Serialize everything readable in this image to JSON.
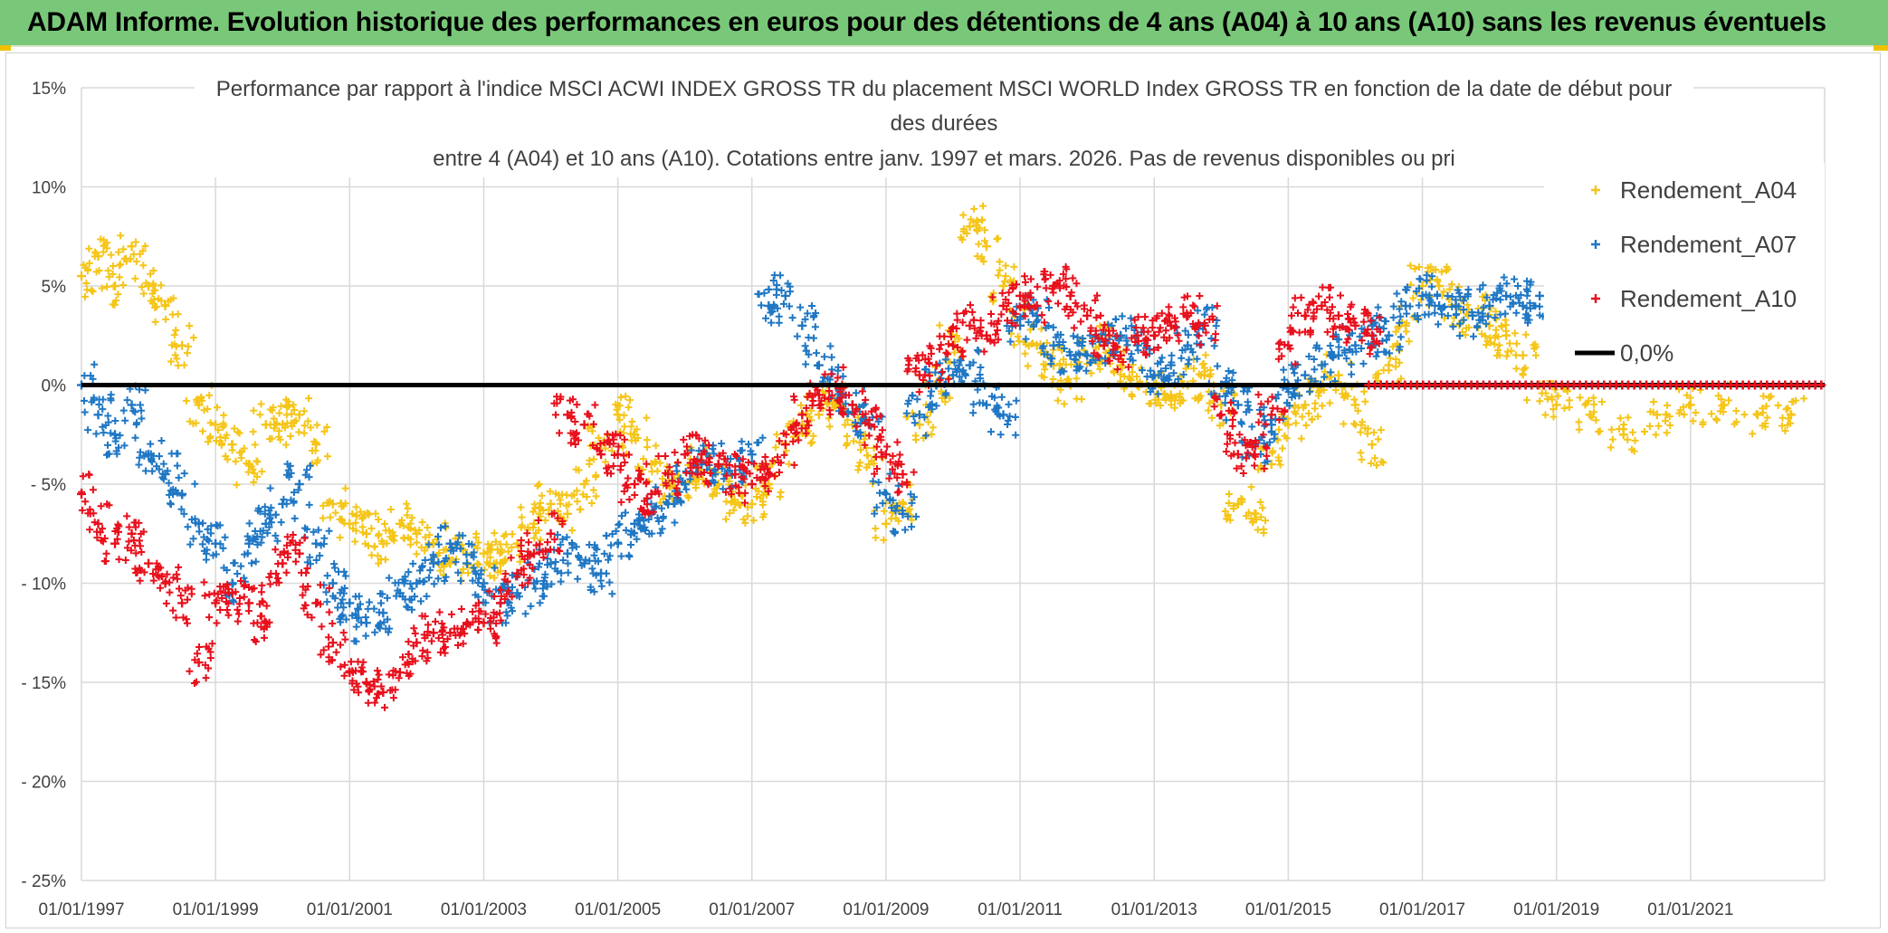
{
  "header": {
    "title": "ADAM Informe. Evolution historique des performances en euros pour des détentions de 4 ans (A04) à 10 ans (A10) sans les revenus éventuels"
  },
  "colors": {
    "banner": "#79c879",
    "A04": "#f5c518",
    "A07": "#1f77c4",
    "A10": "#e8101c",
    "zero_line": "#000000",
    "grid": "#d9d9d9",
    "accent": "#f0c000"
  },
  "chart_data": {
    "type": "scatter",
    "title_lines": [
      "Performance  par rapport à l'indice MSCI ACWI INDEX GROSS TR  du placement MSCI WORLD Index GROSS TR en fonction de la date de début pour",
      "des durées",
      "entre 4 (A04) et 10 ans (A10). Cotations entre janv. 1997 et mars. 2026. Pas de revenus disponibles ou pri"
    ],
    "x_tick_labels": [
      "01/01/1997",
      "01/01/1999",
      "01/01/2001",
      "01/01/2003",
      "01/01/2005",
      "01/01/2007",
      "01/01/2009",
      "01/01/2011",
      "01/01/2013",
      "01/01/2015",
      "01/01/2017",
      "01/01/2019",
      "01/01/2021"
    ],
    "xlim": [
      1997.0,
      2023.0
    ],
    "y_tick_labels": [
      "15%",
      "10%",
      "5%",
      "0%",
      "- 5%",
      "- 10%",
      "- 15%",
      "- 20%",
      "- 25%"
    ],
    "y_tick_values": [
      15,
      10,
      5,
      0,
      -5,
      -10,
      -15,
      -20,
      -25
    ],
    "ylim": [
      -25,
      15
    ],
    "grid": true,
    "legend_position": "right",
    "legend": [
      "Rendement_A04",
      "Rendement_A07",
      "Rendement_A10",
      "0,0%"
    ],
    "series": [
      {
        "name": "Rendement_A04",
        "x": [
          1997.0,
          1997.25,
          1997.5,
          1997.75,
          1998.0,
          1998.25,
          1998.5,
          1998.75,
          1999.0,
          1999.25,
          1999.5,
          1999.75,
          2000.0,
          2000.25,
          2000.5,
          2000.75,
          2001.0,
          2001.25,
          2001.5,
          2001.75,
          2002.0,
          2002.25,
          2002.5,
          2002.75,
          2003.0,
          2003.25,
          2003.5,
          2003.75,
          2004.0,
          2004.25,
          2004.5,
          2004.75,
          2005.0,
          2005.25,
          2005.5,
          2005.75,
          2006.0,
          2006.25,
          2006.5,
          2006.75,
          2007.0,
          2007.25,
          2007.5,
          2007.75,
          2008.0,
          2008.25,
          2008.5,
          2008.75,
          2009.0,
          2009.25,
          2009.5,
          2009.75,
          2010.0,
          2010.25,
          2010.5,
          2010.75,
          2011.0,
          2011.25,
          2011.5,
          2011.75,
          2012.0,
          2012.25,
          2012.5,
          2012.75,
          2013.0,
          2013.25,
          2013.5,
          2013.75,
          2014.0,
          2014.25,
          2014.5,
          2014.75,
          2015.0,
          2015.25,
          2015.5,
          2015.75,
          2016.0,
          2016.25,
          2016.5,
          2016.75,
          2017.0,
          2017.25,
          2017.5,
          2017.75,
          2018.0,
          2018.25,
          2018.5,
          2018.75,
          2019.0,
          2019.5,
          2020.0,
          2020.5,
          2021.0,
          2021.5,
          2022.0,
          2022.5
        ],
        "values": [
          5.5,
          6.5,
          5.0,
          7.0,
          5.0,
          4.0,
          2.0,
          -1.0,
          -2.0,
          -3.0,
          -4.0,
          -2.0,
          -2.0,
          -1.5,
          -3.0,
          -6.0,
          -7.0,
          -7.5,
          -8.0,
          -7.0,
          -7.5,
          -8.0,
          -9.0,
          -8.5,
          -8.5,
          -9.0,
          -8.0,
          -7.0,
          -6.0,
          -6.5,
          -5.0,
          -3.0,
          -1.5,
          -2.5,
          -4.0,
          -5.0,
          -5.0,
          -4.0,
          -5.0,
          -6.0,
          -6.0,
          -5.0,
          -3.0,
          -2.0,
          -1.5,
          -1.0,
          -2.0,
          -4.0,
          -7.0,
          -6.0,
          -2.0,
          0.0,
          2.0,
          8.0,
          7.0,
          5.0,
          3.0,
          2.0,
          1.0,
          0.0,
          1.5,
          2.0,
          1.0,
          0.0,
          0.0,
          -0.5,
          0.0,
          0.5,
          -1.0,
          -6.0,
          -6.5,
          -4.0,
          -2.0,
          -1.0,
          0.0,
          0.5,
          -1.0,
          -3.0,
          1.0,
          3.0,
          5.0,
          5.0,
          4.0,
          3.5,
          3.0,
          2.5,
          1.5,
          0.0,
          -1.0,
          -1.5,
          -2.5,
          -1.5,
          -1.0,
          -1.0,
          -1.5,
          -1.5
        ]
      },
      {
        "name": "Rendement_A07",
        "x": [
          1997.0,
          1997.25,
          1997.5,
          1997.75,
          1998.0,
          1998.25,
          1998.5,
          1998.75,
          1999.0,
          1999.25,
          1999.5,
          1999.75,
          2000.0,
          2000.25,
          2000.5,
          2000.75,
          2001.0,
          2001.25,
          2001.5,
          2001.75,
          2002.0,
          2002.25,
          2002.5,
          2002.75,
          2003.0,
          2003.25,
          2003.5,
          2003.75,
          2004.0,
          2004.25,
          2004.5,
          2004.75,
          2005.0,
          2005.25,
          2005.5,
          2005.75,
          2006.0,
          2006.25,
          2006.5,
          2006.75,
          2007.0,
          2007.25,
          2007.5,
          2007.75,
          2008.0,
          2008.25,
          2008.5,
          2008.75,
          2009.0,
          2009.25,
          2009.5,
          2009.75,
          2010.0,
          2010.25,
          2010.5,
          2010.75,
          2011.0,
          2011.25,
          2011.5,
          2011.75,
          2012.0,
          2012.25,
          2012.5,
          2012.75,
          2013.0,
          2013.25,
          2013.5,
          2013.75,
          2014.0,
          2014.25,
          2014.5,
          2014.75,
          2015.0,
          2015.25,
          2015.5,
          2015.75,
          2016.0,
          2016.25,
          2016.5,
          2016.75,
          2017.0,
          2017.25,
          2017.5,
          2017.75,
          2018.0,
          2018.25,
          2018.5,
          2018.75
        ],
        "values": [
          0.0,
          -1.5,
          -2.5,
          -1.0,
          -3.5,
          -4.5,
          -5.5,
          -7.0,
          -8.0,
          -10.0,
          -8.0,
          -7.0,
          -6.0,
          -5.0,
          -8.0,
          -10.0,
          -11.0,
          -12.0,
          -11.5,
          -10.5,
          -10.0,
          -9.0,
          -8.0,
          -9.0,
          -10.0,
          -11.0,
          -10.5,
          -10.0,
          -9.0,
          -8.5,
          -9.0,
          -9.5,
          -8.0,
          -7.0,
          -6.5,
          -6.0,
          -5.0,
          -4.0,
          -4.0,
          -4.5,
          -3.5,
          4.0,
          4.5,
          3.0,
          1.0,
          0.0,
          -1.0,
          -2.0,
          -5.5,
          -6.5,
          -1.5,
          0.0,
          0.5,
          1.0,
          -1.0,
          -1.5,
          3.0,
          3.5,
          2.0,
          1.5,
          1.5,
          2.0,
          2.5,
          2.0,
          0.5,
          1.0,
          2.0,
          3.0,
          0.0,
          -1.0,
          -3.0,
          -2.0,
          0.0,
          0.5,
          1.0,
          1.5,
          2.0,
          3.0,
          2.5,
          4.0,
          4.5,
          4.0,
          4.0,
          3.5,
          4.0,
          4.5,
          4.0,
          4.5
        ]
      },
      {
        "name": "Rendement_A10",
        "x": [
          1997.0,
          1997.25,
          1997.5,
          1997.75,
          1998.0,
          1998.25,
          1998.5,
          1998.75,
          1999.0,
          1999.25,
          1999.5,
          1999.75,
          2000.0,
          2000.25,
          2000.5,
          2000.75,
          2001.0,
          2001.25,
          2001.5,
          2001.75,
          2002.0,
          2002.25,
          2002.5,
          2002.75,
          2003.0,
          2003.25,
          2003.5,
          2003.75,
          2004.0,
          2004.25,
          2004.5,
          2004.75,
          2005.0,
          2005.25,
          2005.5,
          2005.75,
          2006.0,
          2006.25,
          2006.5,
          2006.75,
          2007.0,
          2007.25,
          2007.5,
          2007.75,
          2008.0,
          2008.25,
          2008.5,
          2008.75,
          2009.0,
          2009.25,
          2009.5,
          2009.75,
          2010.0,
          2010.25,
          2010.5,
          2010.75,
          2011.0,
          2011.25,
          2011.5,
          2011.75,
          2012.0,
          2012.25,
          2012.5,
          2012.75,
          2013.0,
          2013.25,
          2013.5,
          2013.75,
          2014.0,
          2014.25,
          2014.5,
          2014.75,
          2015.0,
          2015.25,
          2015.5,
          2015.75,
          2016.0,
          2016.25
        ],
        "values": [
          -5.5,
          -7.0,
          -8.0,
          -7.5,
          -9.0,
          -10.0,
          -11.0,
          -14.0,
          -11.0,
          -10.5,
          -11.0,
          -12.0,
          -9.0,
          -8.5,
          -11.0,
          -13.0,
          -14.5,
          -15.0,
          -15.5,
          -14.5,
          -13.0,
          -12.5,
          -12.5,
          -12.0,
          -12.0,
          -11.0,
          -9.5,
          -8.5,
          -7.5,
          -1.5,
          -2.0,
          -3.5,
          -3.5,
          -5.0,
          -5.5,
          -4.5,
          -3.5,
          -3.5,
          -4.0,
          -4.5,
          -5.0,
          -4.5,
          -3.0,
          -1.5,
          -0.5,
          0.0,
          -1.0,
          -2.0,
          -3.5,
          -4.5,
          0.5,
          1.0,
          2.0,
          3.0,
          2.5,
          4.0,
          4.5,
          4.0,
          5.0,
          4.5,
          3.5,
          2.0,
          1.5,
          2.5,
          2.5,
          3.0,
          3.5,
          3.0,
          -1.5,
          -3.5,
          -3.5,
          -1.5,
          2.0,
          3.5,
          4.0,
          3.5,
          3.0,
          2.5
        ]
      }
    ],
    "zero_line": {
      "name": "0,0%",
      "value": 0
    }
  }
}
